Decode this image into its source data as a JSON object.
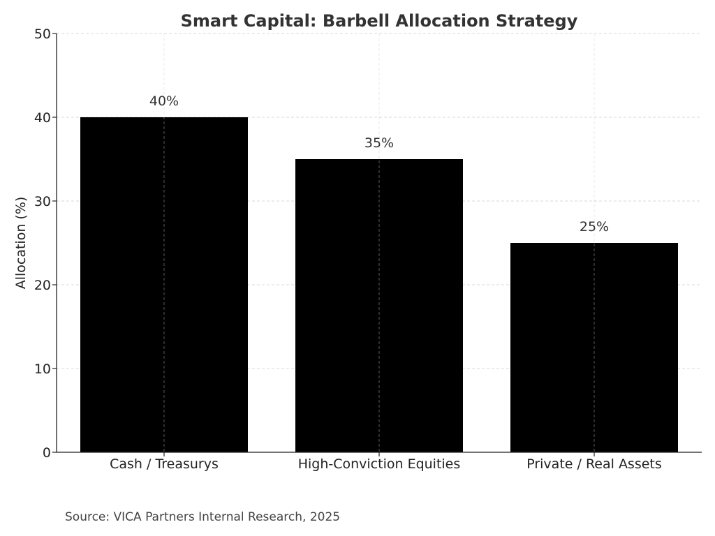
{
  "chart_data": {
    "type": "bar",
    "title": "Smart Capital: Barbell Allocation Strategy",
    "xlabel": "",
    "ylabel": "Allocation (%)",
    "categories": [
      "Cash / Treasurys",
      "High-Conviction Equities",
      "Private / Real Assets"
    ],
    "values": [
      40,
      35,
      25
    ],
    "data_labels": [
      "40%",
      "35%",
      "25%"
    ],
    "ylim": [
      0,
      50
    ],
    "yticks": [
      0,
      10,
      20,
      30,
      40,
      50
    ],
    "ytick_labels": [
      "0",
      "10",
      "20",
      "30",
      "40",
      "50"
    ],
    "grid": true,
    "bar_color": "#000000",
    "grid_color": "#cccccc"
  },
  "footer": {
    "source": "Source: VICA Partners Internal Research, 2025"
  }
}
